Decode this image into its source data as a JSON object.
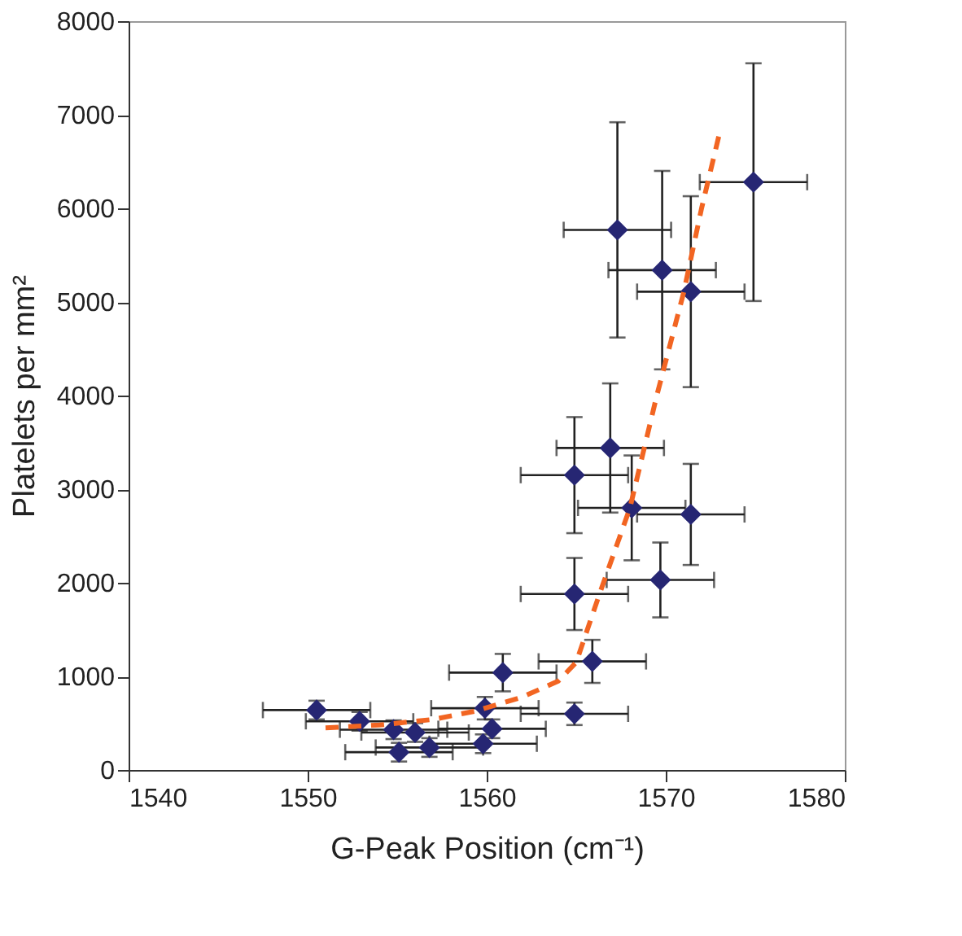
{
  "chart_data": {
    "type": "scatter",
    "xlabel": "G-Peak Position (cm⁻¹)",
    "ylabel": "Platelets per mm²",
    "xlim": [
      1540,
      1580
    ],
    "xticks": [
      1540,
      1550,
      1560,
      1570,
      1580
    ],
    "ylim": [
      0,
      8000
    ],
    "yticks": [
      0,
      1000,
      2000,
      3000,
      4000,
      5000,
      6000,
      7000,
      8000
    ],
    "grid": false,
    "series": [
      {
        "color": "#262673",
        "marker": "diamond",
        "x": [
          1550.5,
          1552.9,
          1554.8,
          1555.1,
          1556.0,
          1556.8,
          1559.9,
          1560.3,
          1559.8,
          1560.9,
          1564.9,
          1565.9,
          1567.3,
          1569.8,
          1571.4,
          1574.9,
          1566.9,
          1564.9,
          1568.1,
          1571.4,
          1569.7,
          1564.9
        ],
        "values": [
          640,
          520,
          430,
          190,
          400,
          240,
          660,
          440,
          280,
          1040,
          600,
          1160,
          5770,
          5340,
          5110,
          6280,
          3440,
          3150,
          2800,
          2730,
          2030,
          1880
        ],
        "errors": [
          100,
          100,
          100,
          100,
          100,
          100,
          120,
          100,
          100,
          200,
          120,
          230,
          1150,
          1060,
          1020,
          1270,
          690,
          620,
          560,
          540,
          400,
          385
        ],
        "xerrors": [
          3,
          3,
          3,
          3,
          3,
          3,
          3,
          3,
          3,
          3,
          3,
          3,
          3,
          3,
          3,
          3,
          3,
          3,
          3,
          3,
          3,
          3
        ]
      },
      {
        "type": "line",
        "color": "#f26522",
        "line_style": "dashed",
        "x": [
          1551,
          1554,
          1557,
          1559.4,
          1562,
          1564,
          1565,
          1566.3,
          1568,
          1569.5,
          1571,
          1572,
          1573
        ],
        "values": [
          450,
          480,
          540,
          630,
          780,
          950,
          1150,
          1880,
          2800,
          4000,
          5100,
          6000,
          6800
        ]
      }
    ]
  }
}
